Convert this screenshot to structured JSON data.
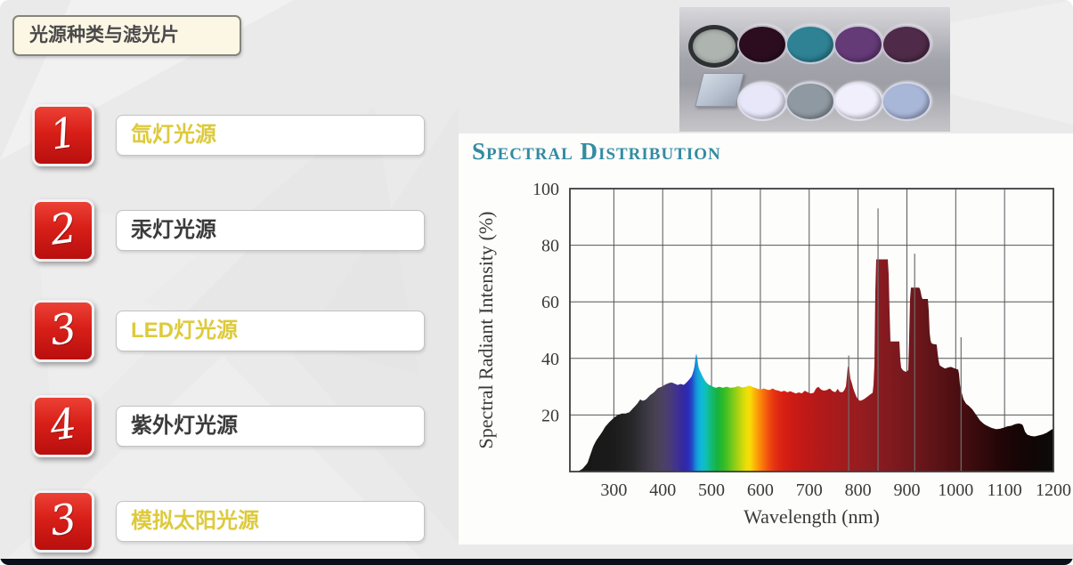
{
  "slide": {
    "title": "光源种类与滤光片",
    "items": [
      {
        "number": "1",
        "label": "氙灯光源",
        "tone": "yellow"
      },
      {
        "number": "2",
        "label": "汞灯光源",
        "tone": "dark"
      },
      {
        "number": "3",
        "label": "LED灯光源",
        "tone": "yellow"
      },
      {
        "number": "4",
        "label": "紫外灯光源",
        "tone": "dark"
      },
      {
        "number": "3",
        "label": "模拟太阳光源",
        "tone": "yellow"
      }
    ],
    "accent_red": "#c8120f",
    "label_yellow": "#ddca3c",
    "label_dark": "#3b3b3b",
    "footer_bar_color": "#0b0e1b"
  },
  "filters_image": {
    "top_row": [
      {
        "name": "neutral-gray-filter",
        "color": "#aeb4b0"
      },
      {
        "name": "deep-maroon-filter",
        "color": "#2c0d20"
      },
      {
        "name": "teal-filter",
        "color": "#2e8294"
      },
      {
        "name": "purple-filter",
        "color": "#643a77"
      },
      {
        "name": "dark-plum-filter",
        "color": "#4f2b49"
      }
    ],
    "bottom_row": [
      {
        "name": "square-glass-filter",
        "color": "#bdc7d5"
      },
      {
        "name": "pale-lavender-filter",
        "color": "#e7e7f9"
      },
      {
        "name": "blue-gray-filter",
        "color": "#8f99a1"
      },
      {
        "name": "white-filter",
        "color": "#f1effb"
      },
      {
        "name": "light-periwinkle-filter",
        "color": "#a8b6d8"
      }
    ]
  },
  "chart_data": {
    "type": "area",
    "title": "Spectral Distribution",
    "title_color": "#338ba1",
    "xlabel": "Wavelength (nm)",
    "ylabel": "Spectral Radiant Intensity (%)",
    "xlim": [
      210,
      1200
    ],
    "ylim": [
      0,
      100
    ],
    "xticks": [
      300,
      400,
      500,
      600,
      700,
      800,
      900,
      1000,
      1100,
      1200
    ],
    "yticks": [
      20,
      40,
      60,
      80,
      100
    ],
    "grid": true,
    "legend": "none",
    "series": [
      {
        "name": "xenon-lamp-spectral-output",
        "points": [
          [
            210,
            0
          ],
          [
            226,
            0
          ],
          [
            236,
            1
          ],
          [
            246,
            3
          ],
          [
            252,
            6
          ],
          [
            258,
            9
          ],
          [
            264,
            11
          ],
          [
            270,
            12.5
          ],
          [
            276,
            14
          ],
          [
            283,
            16
          ],
          [
            291,
            17.5
          ],
          [
            300,
            19
          ],
          [
            308,
            20
          ],
          [
            316,
            20.5
          ],
          [
            324,
            20.5
          ],
          [
            332,
            21
          ],
          [
            340,
            22.5
          ],
          [
            348,
            24
          ],
          [
            354,
            25.5
          ],
          [
            359,
            25
          ],
          [
            366,
            25.5
          ],
          [
            374,
            27
          ],
          [
            382,
            28
          ],
          [
            390,
            29.5
          ],
          [
            398,
            30
          ],
          [
            406,
            30.8
          ],
          [
            413,
            31.3
          ],
          [
            419,
            31.5
          ],
          [
            425,
            31
          ],
          [
            431,
            30.6
          ],
          [
            437,
            31
          ],
          [
            443,
            30.6
          ],
          [
            449,
            31.5
          ],
          [
            454,
            32.5
          ],
          [
            459,
            33.5
          ],
          [
            463,
            35.5
          ],
          [
            466,
            38
          ],
          [
            468,
            42
          ],
          [
            470,
            41.5
          ],
          [
            472,
            38
          ],
          [
            475,
            36
          ],
          [
            478,
            35
          ],
          [
            482,
            33.5
          ],
          [
            487,
            32
          ],
          [
            492,
            31
          ],
          [
            497,
            30.5
          ],
          [
            503,
            30
          ],
          [
            509,
            29.6
          ],
          [
            516,
            30
          ],
          [
            523,
            29.6
          ],
          [
            531,
            30
          ],
          [
            539,
            29.6
          ],
          [
            547,
            29.8
          ],
          [
            555,
            30.2
          ],
          [
            563,
            29.7
          ],
          [
            571,
            30
          ],
          [
            577,
            30.4
          ],
          [
            583,
            30
          ],
          [
            589,
            29.6
          ],
          [
            595,
            29.2
          ],
          [
            601,
            29
          ],
          [
            607,
            29.4
          ],
          [
            613,
            29
          ],
          [
            619,
            28.8
          ],
          [
            625,
            29.4
          ],
          [
            631,
            28.8
          ],
          [
            637,
            28.6
          ],
          [
            643,
            28.2
          ],
          [
            649,
            28.6
          ],
          [
            655,
            28
          ],
          [
            661,
            28.4
          ],
          [
            667,
            28
          ],
          [
            673,
            27.6
          ],
          [
            679,
            28
          ],
          [
            685,
            27.6
          ],
          [
            691,
            28.6
          ],
          [
            697,
            28
          ],
          [
            703,
            27.6
          ],
          [
            709,
            27.8
          ],
          [
            714,
            29.4
          ],
          [
            719,
            30
          ],
          [
            724,
            29
          ],
          [
            730,
            28.6
          ],
          [
            736,
            28.8
          ],
          [
            742,
            29.4
          ],
          [
            748,
            28.4
          ],
          [
            754,
            28
          ],
          [
            758,
            29.4
          ],
          [
            762,
            28.2
          ],
          [
            768,
            28
          ],
          [
            772,
            28.8
          ],
          [
            776,
            30.5
          ],
          [
            778,
            36
          ],
          [
            780,
            38
          ],
          [
            782,
            36.5
          ],
          [
            784,
            33
          ],
          [
            787,
            31.5
          ],
          [
            790,
            29.5
          ],
          [
            794,
            27.5
          ],
          [
            798,
            26
          ],
          [
            803,
            25
          ],
          [
            808,
            25.2
          ],
          [
            814,
            25.8
          ],
          [
            820,
            26.6
          ],
          [
            826,
            27.4
          ],
          [
            831,
            28
          ],
          [
            834,
            40
          ],
          [
            836,
            75
          ],
          [
            842,
            75
          ],
          [
            849,
            75
          ],
          [
            856,
            75
          ],
          [
            862,
            75
          ],
          [
            864,
            60
          ],
          [
            866,
            46
          ],
          [
            872,
            46
          ],
          [
            879,
            46
          ],
          [
            885,
            46
          ],
          [
            887,
            37
          ],
          [
            892,
            35.8
          ],
          [
            898,
            35.2
          ],
          [
            903,
            35.8
          ],
          [
            905,
            50
          ],
          [
            907,
            65
          ],
          [
            913,
            65
          ],
          [
            920,
            65
          ],
          [
            926,
            65
          ],
          [
            929,
            63
          ],
          [
            931,
            61
          ],
          [
            937,
            61
          ],
          [
            944,
            61
          ],
          [
            946,
            50
          ],
          [
            949,
            45.5
          ],
          [
            955,
            45
          ],
          [
            961,
            45
          ],
          [
            964,
            40
          ],
          [
            967,
            37.5
          ],
          [
            972,
            37
          ],
          [
            978,
            36.4
          ],
          [
            984,
            36.8
          ],
          [
            990,
            37
          ],
          [
            996,
            36.6
          ],
          [
            1002,
            36.2
          ],
          [
            1006,
            36
          ],
          [
            1009,
            30
          ],
          [
            1012,
            28
          ],
          [
            1016,
            25.5
          ],
          [
            1021,
            24
          ],
          [
            1027,
            23.2
          ],
          [
            1034,
            22
          ],
          [
            1042,
            20
          ],
          [
            1050,
            18
          ],
          [
            1058,
            16.8
          ],
          [
            1066,
            16
          ],
          [
            1074,
            15.4
          ],
          [
            1082,
            15
          ],
          [
            1090,
            15.1
          ],
          [
            1098,
            15.5
          ],
          [
            1106,
            16
          ],
          [
            1114,
            16.2
          ],
          [
            1122,
            16.8
          ],
          [
            1130,
            17
          ],
          [
            1137,
            16.6
          ],
          [
            1142,
            14
          ],
          [
            1147,
            13
          ],
          [
            1154,
            12.6
          ],
          [
            1162,
            12.4
          ],
          [
            1170,
            12.8
          ],
          [
            1178,
            13.1
          ],
          [
            1186,
            13.7
          ],
          [
            1193,
            14.5
          ],
          [
            1200,
            15.2
          ]
        ]
      }
    ],
    "spikes": [
      [
        780,
        41
      ],
      [
        840,
        93
      ],
      [
        915,
        77
      ],
      [
        1010,
        47.5
      ]
    ],
    "palette_stops": [
      [
        210,
        "#161616"
      ],
      [
        300,
        "#1b1b1b"
      ],
      [
        340,
        "#28282a"
      ],
      [
        365,
        "#3a3742"
      ],
      [
        385,
        "#474150"
      ],
      [
        400,
        "#4c4163"
      ],
      [
        415,
        "#483b77"
      ],
      [
        430,
        "#3f3192"
      ],
      [
        442,
        "#3328a2"
      ],
      [
        452,
        "#2b2cb6"
      ],
      [
        460,
        "#2348c9"
      ],
      [
        466,
        "#1a7ed3"
      ],
      [
        472,
        "#12a5db"
      ],
      [
        480,
        "#10b9d6"
      ],
      [
        490,
        "#10bfae"
      ],
      [
        500,
        "#13ba70"
      ],
      [
        512,
        "#17b23e"
      ],
      [
        525,
        "#31bb27"
      ],
      [
        538,
        "#63c61d"
      ],
      [
        550,
        "#97cf16"
      ],
      [
        562,
        "#c8d80e"
      ],
      [
        572,
        "#eede08"
      ],
      [
        580,
        "#f9d906"
      ],
      [
        588,
        "#fbb407"
      ],
      [
        598,
        "#fa8e0a"
      ],
      [
        608,
        "#f66b0c"
      ],
      [
        618,
        "#ef4b0f"
      ],
      [
        630,
        "#e43112"
      ],
      [
        645,
        "#d92113"
      ],
      [
        665,
        "#cd1a15"
      ],
      [
        690,
        "#c01917"
      ],
      [
        720,
        "#b31a19"
      ],
      [
        760,
        "#a61b1d"
      ],
      [
        800,
        "#971c1f"
      ],
      [
        840,
        "#8a1b20"
      ],
      [
        880,
        "#7b191e"
      ],
      [
        920,
        "#6c171b"
      ],
      [
        960,
        "#5c1317"
      ],
      [
        1000,
        "#4c0f12"
      ],
      [
        1040,
        "#390b0d"
      ],
      [
        1080,
        "#270708"
      ],
      [
        1120,
        "#190505"
      ],
      [
        1160,
        "#100606"
      ],
      [
        1200,
        "#0d0b0b"
      ]
    ]
  }
}
